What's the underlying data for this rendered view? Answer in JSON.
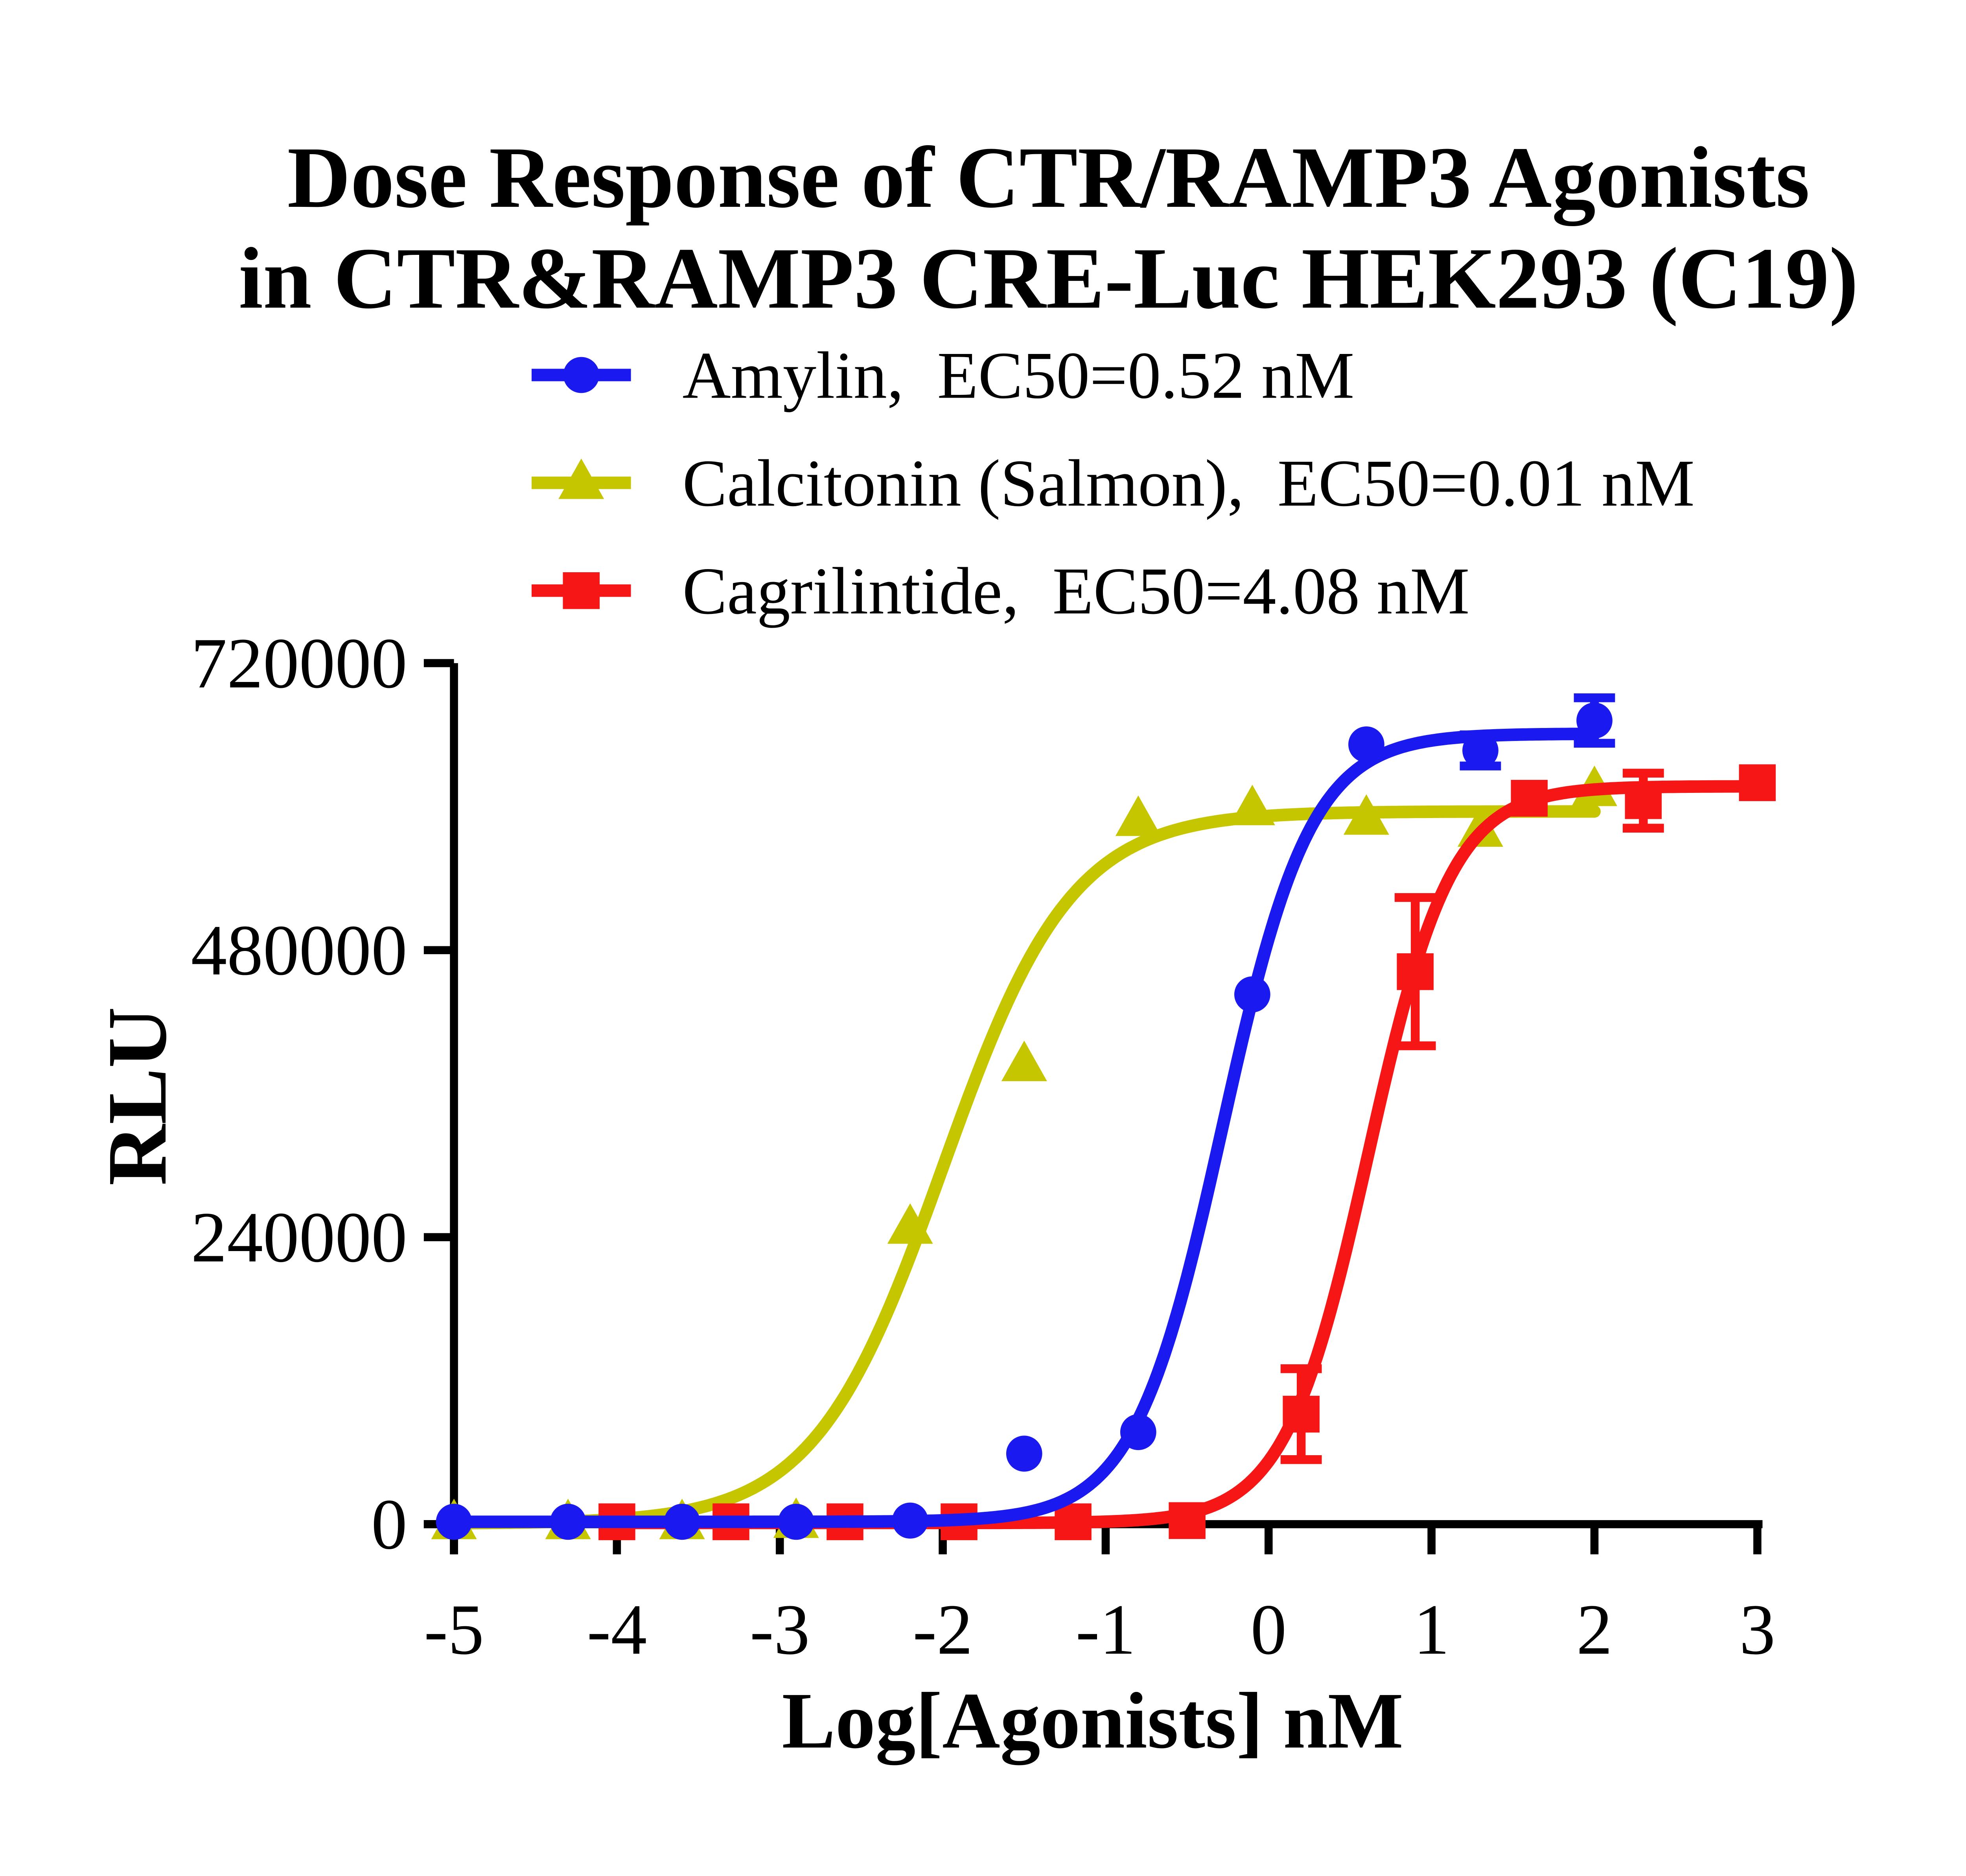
{
  "figure": {
    "background_color": "#ffffff",
    "text_color": "#000000"
  },
  "title": {
    "line1": "Dose Response of CTR/RAMP3 Agonists",
    "line2": "in CTR&RAMP3 CRE-Luc HEK293 (C19)"
  },
  "chart_data": {
    "type": "scatter",
    "subtype": "dose-response-4PL-fit",
    "title": "Dose Response of CTR/RAMP3 Agonists in CTR&RAMP3 CRE-Luc HEK293 (C19)",
    "xlabel": "Log[Agonists] nM",
    "ylabel": "RLU",
    "xlim": [
      -5.2,
      3.28
    ],
    "ylim": [
      0,
      720000
    ],
    "x_ticks": [
      -5,
      -4,
      -3,
      -2,
      -1,
      0,
      1,
      2,
      3
    ],
    "y_ticks": [
      0,
      240000,
      480000,
      720000
    ],
    "grid": false,
    "legend_position": "top-left-below-title",
    "draw_order": [
      1,
      2,
      0
    ],
    "series": [
      {
        "name": "Amylin",
        "legend_label": "Amylin, EC50=0.52 nM",
        "ec50_nM": 0.52,
        "color": "#1a1af0",
        "marker": "circle",
        "x": [
          -5.0,
          -4.3,
          -3.6,
          -2.9,
          -2.2,
          -1.5,
          -0.8,
          -0.1,
          0.6,
          1.3,
          2.0
        ],
        "y": [
          2000,
          2000,
          2000,
          2000,
          3000,
          59000,
          77000,
          443000,
          652000,
          647000,
          672000
        ],
        "yerr": [
          0,
          0,
          0,
          0,
          0,
          0,
          0,
          0,
          0,
          13000,
          19000
        ],
        "fit": {
          "bottom": 2000,
          "top": 661000,
          "logEC50": -0.284,
          "hill": 1.6,
          "range": [
            -5.0,
            2.0
          ]
        }
      },
      {
        "name": "Calcitonin (Salmon)",
        "legend_label": "Calcitonin (Salmon), EC50=0.01 nM",
        "ec50_nM": 0.01,
        "color": "#c5c500",
        "marker": "triangle",
        "x": [
          -5.0,
          -4.3,
          -3.6,
          -2.9,
          -2.2,
          -1.5,
          -0.8,
          -0.1,
          0.6,
          1.3,
          2.0
        ],
        "y": [
          1000,
          1000,
          1000,
          2000,
          248000,
          384000,
          589000,
          598000,
          590000,
          580000,
          614000
        ],
        "yerr": [
          0,
          0,
          0,
          0,
          0,
          0,
          0,
          0,
          0,
          0,
          0
        ],
        "fit": {
          "bottom": 500,
          "top": 596000,
          "logEC50": -2.0,
          "hill": 1.1,
          "range": [
            -5.0,
            2.0
          ]
        }
      },
      {
        "name": "Cagrilintide",
        "legend_label": "Cagrilintide, EC50=4.08 nM",
        "ec50_nM": 4.08,
        "color": "#f71616",
        "marker": "square",
        "x": [
          -4.0,
          -3.3,
          -2.6,
          -1.9,
          -1.2,
          -0.5,
          0.2,
          0.9,
          1.6,
          2.3,
          3.0
        ],
        "y": [
          2000,
          2000,
          2000,
          2000,
          2000,
          3000,
          92000,
          462000,
          607000,
          605000,
          620000
        ],
        "yerr": [
          0,
          0,
          0,
          0,
          0,
          0,
          38000,
          62000,
          0,
          23000,
          0
        ],
        "fit": {
          "bottom": 1000,
          "top": 617000,
          "logEC50": 0.611,
          "hill": 1.7,
          "range": [
            -4.0,
            3.0
          ]
        }
      }
    ]
  }
}
